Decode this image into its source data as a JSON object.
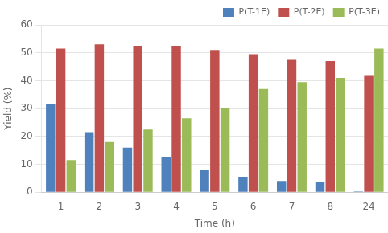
{
  "chart_data": {
    "type": "bar",
    "xlabel": "Time (h)",
    "ylabel": "Yield (%)",
    "categories": [
      "1",
      "2",
      "3",
      "4",
      "5",
      "6",
      "7",
      "8",
      "24"
    ],
    "series": [
      {
        "name": "P(T-1E)",
        "color": "#4F81BD",
        "values": [
          31.5,
          21.5,
          16.0,
          12.5,
          8.0,
          5.5,
          4.0,
          3.5,
          0.3
        ]
      },
      {
        "name": "P(T-2E)",
        "color": "#C0504D",
        "values": [
          51.5,
          53.0,
          52.5,
          52.5,
          51.0,
          49.5,
          47.5,
          47.0,
          42.0
        ]
      },
      {
        "name": "P(T-3E)",
        "color": "#9BBB59",
        "values": [
          11.5,
          18.0,
          22.5,
          26.5,
          30.0,
          37.0,
          39.5,
          41.0,
          51.5
        ]
      }
    ],
    "ylim": [
      0,
      60
    ],
    "yticks": [
      0,
      10,
      20,
      30,
      40,
      50,
      60
    ],
    "grid": true,
    "legend": "upper right"
  }
}
